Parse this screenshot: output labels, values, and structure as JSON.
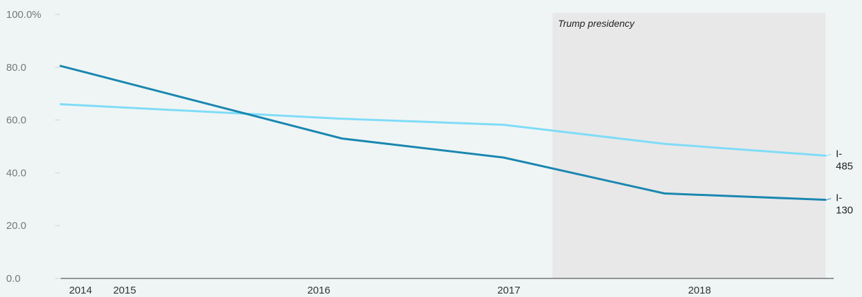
{
  "chart_data": {
    "type": "line",
    "title": "",
    "xlabel": "",
    "ylabel": "",
    "x_ticks": [
      "2014",
      "2015",
      "2016",
      "2017",
      "2018"
    ],
    "y_ticks": [
      "0.0",
      "20.0",
      "40.0",
      "60.0",
      "80.0",
      "100.0%"
    ],
    "ylim": [
      0,
      100
    ],
    "xlim": [
      "2014-01-01",
      "2018-12-31"
    ],
    "grid": false,
    "series": [
      {
        "name": "I-130",
        "color": "#1a87b0",
        "points": [
          {
            "x": "2014-01-01",
            "y": 80.5
          },
          {
            "x": "2015-10-01",
            "y": 53.0
          },
          {
            "x": "2016-10-01",
            "y": 45.8
          },
          {
            "x": "2017-10-01",
            "y": 32.2
          },
          {
            "x": "2018-10-01",
            "y": 29.8
          }
        ],
        "end_label_lines": [
          "I-",
          "130"
        ]
      },
      {
        "name": "I-485",
        "color": "#7fdcf7",
        "points": [
          {
            "x": "2014-01-01",
            "y": 66.0
          },
          {
            "x": "2015-10-01",
            "y": 60.5
          },
          {
            "x": "2016-10-01",
            "y": 58.2
          },
          {
            "x": "2017-10-01",
            "y": 51.0
          },
          {
            "x": "2018-10-01",
            "y": 46.5
          }
        ],
        "end_label_lines": [
          "I-",
          "485"
        ]
      }
    ],
    "annotations": [
      {
        "type": "shaded-range",
        "label": "Trump presidency",
        "x_start": "2017-01-20",
        "x_end": "2018-10-01",
        "color": "#e8e8e8"
      }
    ]
  }
}
